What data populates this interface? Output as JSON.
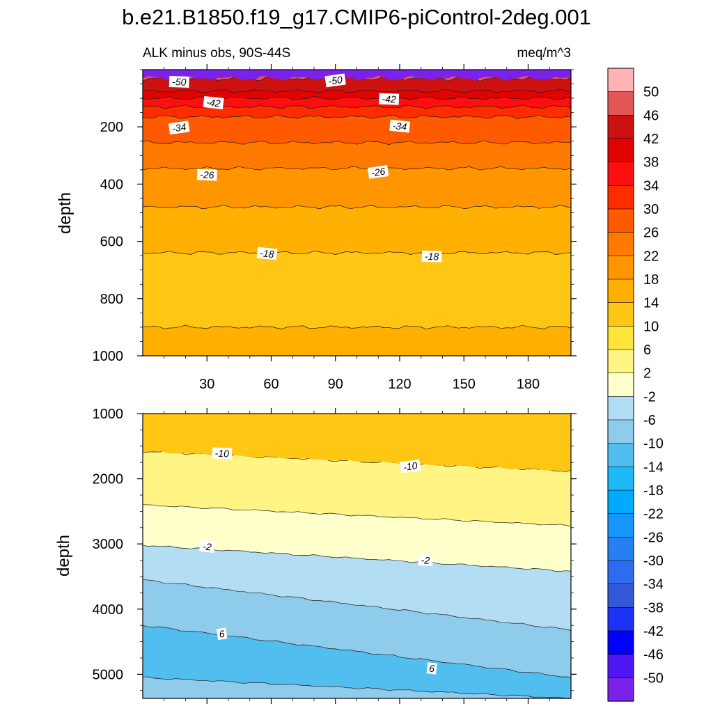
{
  "figure": {
    "title": "b.e21.B1850.f19_g17.CMIP6-piControl-2deg.001"
  },
  "chart_data": [
    {
      "type": "heatmap",
      "panel": "upper",
      "subtitle_left": "ALK minus obs, 90S-44S",
      "subtitle_right": "meq/m^3",
      "xlabel": "",
      "ylabel": "depth",
      "xlim": [
        0,
        200
      ],
      "ylim": [
        1000,
        0
      ],
      "x_ticks": [
        30,
        60,
        90,
        120,
        150,
        180
      ],
      "y_ticks": [
        200,
        400,
        600,
        800,
        1000
      ],
      "contour_boundaries": [
        {
          "level": -50,
          "depth": 30
        },
        {
          "level": -46,
          "depth": 75
        },
        {
          "level": -42,
          "depth": 100
        },
        {
          "level": -38,
          "depth": 130
        },
        {
          "level": -34,
          "depth": 165
        },
        {
          "level": -30,
          "depth": 255
        },
        {
          "level": -26,
          "depth": 345
        },
        {
          "level": -22,
          "depth": 480
        },
        {
          "level": -18,
          "depth": 640
        },
        {
          "level": -14,
          "depth": 900
        }
      ],
      "contour_labels": [
        {
          "text": "-50",
          "x": 17,
          "depth": 45
        },
        {
          "text": "-50",
          "x": 90,
          "depth": 40
        },
        {
          "text": "-42",
          "x": 33,
          "depth": 118
        },
        {
          "text": "-42",
          "x": 115,
          "depth": 105
        },
        {
          "text": "-34",
          "x": 17,
          "depth": 205
        },
        {
          "text": "-34",
          "x": 120,
          "depth": 200
        },
        {
          "text": "-26",
          "x": 30,
          "depth": 370
        },
        {
          "text": "-26",
          "x": 110,
          "depth": 360
        },
        {
          "text": "-18",
          "x": 58,
          "depth": 645
        },
        {
          "text": "-18",
          "x": 135,
          "depth": 655
        }
      ]
    },
    {
      "type": "heatmap",
      "panel": "lower",
      "xlabel": "",
      "ylabel": "depth",
      "xlim": [
        0,
        200
      ],
      "ylim": [
        5370,
        1000
      ],
      "y_ticks": [
        1000,
        2000,
        3000,
        4000,
        5000
      ],
      "contour_boundaries": [
        {
          "level": -10,
          "depth_left": 1580,
          "depth_right": 1880
        },
        {
          "level": -6,
          "depth_left": 2400,
          "depth_right": 2720
        },
        {
          "level": -2,
          "depth_left": 3020,
          "depth_right": 3420
        },
        {
          "level": 2,
          "depth_left": 3550,
          "depth_right": 4320
        },
        {
          "level": 6,
          "depth_left": 4250,
          "depth_right": 5050
        },
        {
          "level": 10,
          "depth_left": 5050,
          "depth_right": 5370
        }
      ],
      "contour_labels": [
        {
          "text": "-10",
          "x": 37,
          "depth": 1620
        },
        {
          "text": "-10",
          "x": 125,
          "depth": 1820
        },
        {
          "text": "-2",
          "x": 30,
          "depth": 3050
        },
        {
          "text": "-2",
          "x": 132,
          "depth": 3260
        },
        {
          "text": "6",
          "x": 37,
          "depth": 4390
        },
        {
          "text": "6",
          "x": 135,
          "depth": 4920
        }
      ]
    }
  ],
  "colorbar": {
    "labels": [
      "50",
      "46",
      "42",
      "38",
      "34",
      "30",
      "26",
      "22",
      "18",
      "14",
      "10",
      "6",
      "2",
      "-2",
      "-6",
      "-10",
      "-14",
      "-18",
      "-22",
      "-26",
      "-30",
      "-34",
      "-38",
      "-42",
      "-46",
      "-50"
    ],
    "colors": [
      "#FFB3B3",
      "#E45757",
      "#CD1111",
      "#E10202",
      "#FD0F0F",
      "#FF2C00",
      "#FF5A00",
      "#FF7A00",
      "#FF9600",
      "#FFB000",
      "#FFC614",
      "#FFE43A",
      "#FFF484",
      "#FFFFCC",
      "#B3DDF3",
      "#8FCBEB",
      "#52BEF0",
      "#1EBAF7",
      "#00ABFF",
      "#1696FF",
      "#2680F1",
      "#2F6BEF",
      "#3358D8",
      "#1C32F5",
      "#0000FF",
      "#4E15F5",
      "#7A22E8"
    ]
  }
}
